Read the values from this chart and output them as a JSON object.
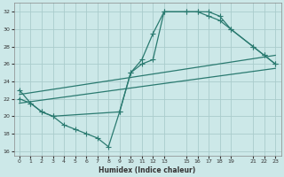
{
  "xlabel": "Humidex (Indice chaleur)",
  "bg_color": "#cce8e8",
  "grid_color": "#aacccc",
  "line_color": "#2a7a70",
  "xlim": [
    -0.5,
    23.5
  ],
  "ylim": [
    15.5,
    33
  ],
  "xticks": [
    0,
    1,
    2,
    3,
    4,
    5,
    6,
    7,
    8,
    9,
    10,
    11,
    12,
    13,
    15,
    16,
    17,
    18,
    19,
    21,
    22,
    23
  ],
  "yticks": [
    16,
    18,
    20,
    22,
    24,
    26,
    28,
    30,
    32
  ],
  "line1_x": [
    0,
    1,
    2,
    3,
    4,
    5,
    6,
    7,
    8,
    9,
    10,
    11,
    12,
    13,
    15,
    16,
    17,
    18,
    19,
    21,
    22,
    23
  ],
  "line1_y": [
    23,
    21.5,
    20.5,
    20,
    19,
    18.5,
    18,
    17.5,
    16.5,
    20.5,
    25,
    26.5,
    29.5,
    32,
    32,
    32,
    32,
    31.5,
    30,
    28,
    27,
    26
  ],
  "line2_x": [
    0,
    1,
    2,
    3,
    9,
    10,
    11,
    12,
    13,
    15,
    16,
    17,
    18,
    19,
    21,
    22,
    23
  ],
  "line2_y": [
    22,
    21.5,
    20.5,
    20,
    20.5,
    25,
    26,
    26.5,
    32,
    32,
    32,
    31.5,
    31,
    30,
    28,
    27,
    26
  ],
  "line3_x": [
    0,
    23
  ],
  "line3_y": [
    21.5,
    25.5
  ],
  "line4_x": [
    0,
    23
  ],
  "line4_y": [
    22.5,
    27
  ]
}
